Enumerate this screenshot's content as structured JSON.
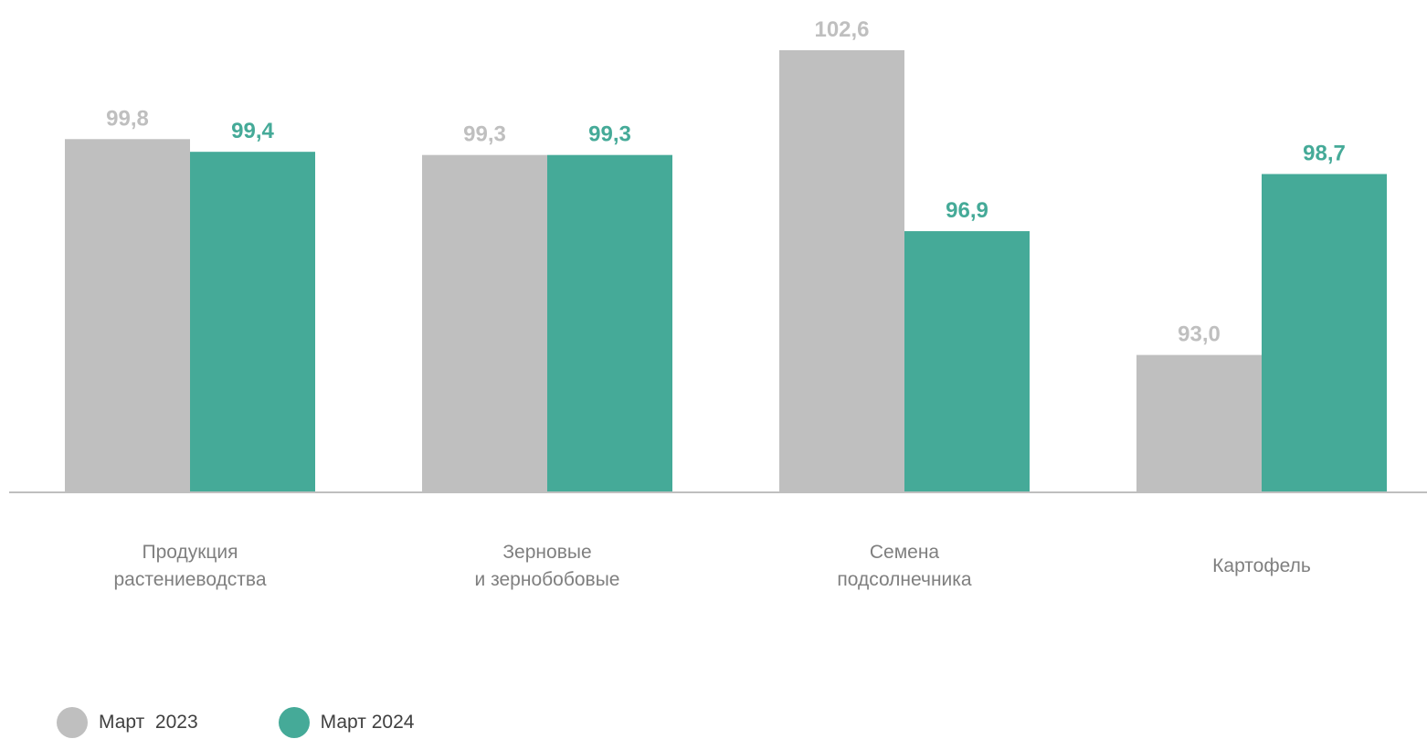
{
  "chart_data": {
    "type": "bar",
    "categories": [
      [
        "Продукция",
        "растениеводства"
      ],
      [
        "Зерновые",
        "и зернобобовые"
      ],
      [
        "Семена",
        "подсолнечника"
      ],
      [
        "Картофель"
      ]
    ],
    "series": [
      {
        "name": "Март  2023",
        "color": "#bfbfbf",
        "label_color": "#bfbfbf",
        "values": [
          99.8,
          99.3,
          102.6,
          93.0
        ],
        "labels": [
          "99,8",
          "99,3",
          "102,6",
          "93,0"
        ]
      },
      {
        "name": "Март 2024",
        "color": "#45aa98",
        "label_color": "#45aa98",
        "values": [
          99.4,
          99.3,
          96.9,
          98.7
        ],
        "labels": [
          "99,4",
          "99,3",
          "96,9",
          "98,7"
        ]
      }
    ],
    "ylim": [
      88.7,
      102.6
    ],
    "grid": false,
    "legend_position": "bottom-left"
  }
}
